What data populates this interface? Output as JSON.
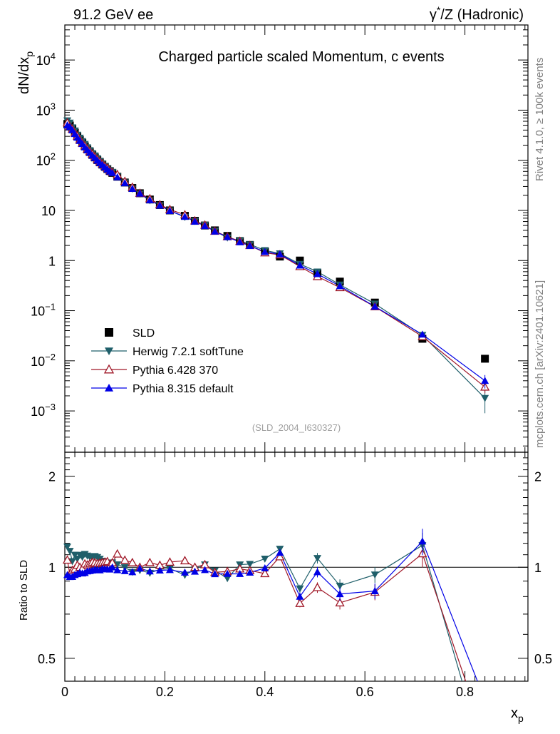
{
  "header": {
    "left": "91.2 GeV ee",
    "right_prefix": "γ",
    "right_sup": "*",
    "right_suffix": "/Z (Hadronic)"
  },
  "side": {
    "rivet": "Rivet 4.1.0, ≥ 100k events",
    "mcplots": "mcplots.cern.ch [arXiv:2401.10621]"
  },
  "plot": {
    "title": "Charged particle scaled Momentum, c events",
    "analysis": "(SLD_2004_I630327)",
    "ylabel_main": "dN/dx",
    "ylabel_sub": "p",
    "ratio_ylabel": "Ratio to SLD",
    "xlabel_main": "x",
    "xlabel_sub": "p"
  },
  "chart_data": {
    "type": "scatter",
    "title": "Charged particle scaled Momentum, c events",
    "x_axis": {
      "label": "x_p",
      "range": [
        0,
        0.926
      ],
      "ticks": [
        0,
        0.2,
        0.4,
        0.6,
        0.8
      ],
      "tick_labels": [
        "0",
        "0.2",
        "0.4",
        "0.6",
        "0.8"
      ]
    },
    "main_y_axis": {
      "label": "dN/dx_p",
      "scale": "log",
      "range": [
        0.00015,
        50000
      ],
      "ticks": [
        {
          "v": 0.001,
          "base": "10",
          "exp": "−3"
        },
        {
          "v": 0.01,
          "base": "10",
          "exp": "−2"
        },
        {
          "v": 0.1,
          "base": "10",
          "exp": "−1"
        },
        {
          "v": 1,
          "base": "1",
          "exp": ""
        },
        {
          "v": 10,
          "base": "10",
          "exp": ""
        },
        {
          "v": 100,
          "base": "10",
          "exp": "2"
        },
        {
          "v": 1000,
          "base": "10",
          "exp": "3"
        },
        {
          "v": 10000,
          "base": "10",
          "exp": "4"
        }
      ]
    },
    "ratio_y_axis": {
      "label": "Ratio to SLD",
      "scale": "log",
      "range": [
        0.42,
        2.4
      ],
      "ticks": [
        0.5,
        1,
        2
      ],
      "tick_labels": [
        "0.5",
        "1",
        "2"
      ]
    },
    "x": [
      0.005,
      0.01,
      0.015,
      0.02,
      0.025,
      0.03,
      0.035,
      0.04,
      0.045,
      0.05,
      0.055,
      0.06,
      0.065,
      0.07,
      0.075,
      0.08,
      0.085,
      0.09,
      0.095,
      0.105,
      0.12,
      0.135,
      0.15,
      0.17,
      0.19,
      0.21,
      0.24,
      0.26,
      0.28,
      0.3,
      0.325,
      0.35,
      0.37,
      0.4,
      0.43,
      0.47,
      0.505,
      0.55,
      0.62,
      0.715,
      0.84
    ],
    "series": [
      {
        "name": "SLD",
        "color": "#000000",
        "marker": "square",
        "values": [
          530,
          495,
          430,
          355,
          300,
          255,
          222,
          190,
          165,
          146,
          128,
          114,
          101,
          91,
          82,
          74,
          67,
          61,
          56,
          47,
          36,
          28,
          22,
          16.5,
          12.8,
          10.0,
          7.8,
          6.2,
          5.0,
          4.0,
          3.1,
          2.45,
          2.05,
          1.5,
          1.2,
          1.0,
          0.56,
          0.38,
          0.145,
          0.0275,
          0.011
        ]
      },
      {
        "name": "Herwig 7.2.1 softTune",
        "color": "#1f5f6a",
        "marker": "triangle-down",
        "values": [
          620,
          560,
          450,
          390,
          320,
          280,
          240,
          210,
          180,
          158,
          138,
          124,
          109,
          97,
          86,
          77,
          69,
          63,
          58,
          48,
          36,
          27,
          21.5,
          15.8,
          12.6,
          9.9,
          7.35,
          6.1,
          5.1,
          3.9,
          2.85,
          2.5,
          2.1,
          1.6,
          1.38,
          0.85,
          0.6,
          0.33,
          0.137,
          0.0325,
          0.0018
        ]
      },
      {
        "name": "Pythia 6.428 370",
        "color": "#a01828",
        "marker": "triangle-open",
        "values": [
          560,
          470,
          420,
          350,
          305,
          255,
          220,
          195,
          168,
          150,
          133,
          118,
          104,
          94,
          85,
          77,
          70,
          62,
          58,
          52,
          38,
          29,
          22,
          17.1,
          13.0,
          10.4,
          8.2,
          6.2,
          5.1,
          3.85,
          3.0,
          2.42,
          2.0,
          1.43,
          1.3,
          0.76,
          0.48,
          0.29,
          0.12,
          0.0305,
          0.003
        ]
      },
      {
        "name": "Pythia 8.315 default",
        "color": "#0000e6",
        "marker": "triangle-up",
        "values": [
          500,
          460,
          400,
          335,
          285,
          245,
          212,
          182,
          160,
          142,
          125,
          112,
          99,
          89,
          81,
          73,
          66,
          60,
          56,
          46,
          35,
          27,
          21.8,
          16.0,
          12.5,
          9.8,
          7.5,
          6.0,
          4.9,
          3.8,
          2.95,
          2.33,
          1.97,
          1.49,
          1.34,
          0.8,
          0.54,
          0.31,
          0.121,
          0.0335,
          0.004
        ]
      }
    ],
    "errors_relative": {
      "Herwig 7.2.1 softTune": [
        0,
        0,
        0,
        0,
        0,
        0,
        0,
        0,
        0,
        0,
        0,
        0,
        0,
        0,
        0,
        0,
        0,
        0,
        0,
        0,
        0,
        0,
        0,
        0,
        0,
        0,
        0,
        0,
        0,
        0,
        0,
        0,
        0,
        0.02,
        0.02,
        0.03,
        0.04,
        0.05,
        0.06,
        0.1,
        0.5
      ],
      "Pythia 6.428 370": [
        0,
        0,
        0,
        0,
        0,
        0,
        0,
        0,
        0,
        0,
        0,
        0,
        0,
        0,
        0,
        0,
        0,
        0,
        0,
        0,
        0,
        0,
        0,
        0,
        0,
        0,
        0,
        0,
        0,
        0,
        0,
        0,
        0,
        0.02,
        0.02,
        0.03,
        0.04,
        0.05,
        0.06,
        0.1,
        0.25
      ],
      "Pythia 8.315 default": [
        0,
        0,
        0,
        0,
        0,
        0,
        0,
        0,
        0,
        0,
        0,
        0,
        0,
        0,
        0,
        0,
        0,
        0,
        0,
        0,
        0,
        0,
        0,
        0,
        0,
        0,
        0,
        0,
        0,
        0,
        0,
        0,
        0,
        0.02,
        0.02,
        0.03,
        0.04,
        0.05,
        0.06,
        0.1,
        0.3
      ]
    },
    "legend_position": "lower-left"
  }
}
